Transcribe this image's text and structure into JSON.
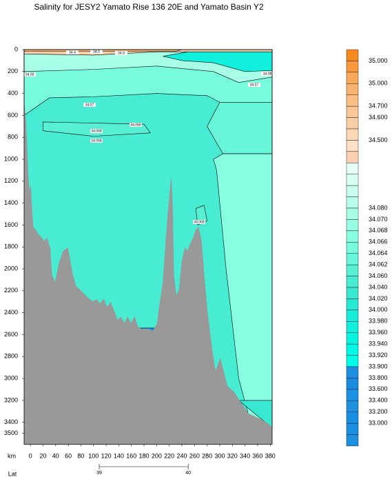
{
  "chart_data": {
    "type": "section",
    "title": "Salinity for JESY2 Yamato Rise 136 20E and Yamato Basin Y2",
    "x_label": "km",
    "x2_label": "Lat",
    "xlim": [
      -10,
      383
    ],
    "xticks": [
      0,
      20,
      40,
      60,
      80,
      100,
      120,
      140,
      160,
      180,
      200,
      220,
      240,
      260,
      280,
      300,
      320,
      340,
      360,
      380
    ],
    "x2ticks": [
      {
        "value": 109,
        "label": "39"
      },
      {
        "value": 250,
        "label": "40"
      }
    ],
    "ylim": [
      0,
      3600
    ],
    "yticks": [
      0,
      200,
      400,
      600,
      800,
      1000,
      1200,
      1400,
      1600,
      1800,
      2000,
      2200,
      2400,
      2600,
      2800,
      3000,
      3200,
      3400,
      3500
    ],
    "seafloor": {
      "color": "#999999",
      "x": [
        -10,
        -7,
        -4,
        -2,
        0,
        2,
        4,
        9,
        13,
        18,
        22,
        26,
        31,
        34,
        39,
        46,
        52,
        59,
        61,
        67,
        72,
        78,
        83,
        88,
        94,
        99,
        105,
        110,
        116,
        121,
        127,
        132,
        138,
        143,
        149,
        154,
        159,
        165,
        170,
        176,
        187,
        194,
        201,
        205,
        210,
        214,
        218,
        221,
        223,
        225,
        227,
        231,
        236,
        240,
        245,
        249,
        253,
        258,
        262,
        266,
        271,
        275,
        280,
        284,
        288,
        293,
        297,
        301,
        306,
        312,
        323,
        334,
        345,
        356,
        367,
        378,
        383
      ],
      "depth": [
        480,
        700,
        1120,
        1300,
        1245,
        1430,
        1620,
        1650,
        1690,
        1720,
        1750,
        1720,
        1810,
        2060,
        2130,
        1940,
        1840,
        1810,
        1870,
        2060,
        2160,
        2190,
        2220,
        2250,
        2280,
        2300,
        2280,
        2320,
        2280,
        2350,
        2310,
        2380,
        2470,
        2440,
        2500,
        2440,
        2500,
        2440,
        2530,
        2550,
        2550,
        2570,
        2500,
        2320,
        2130,
        1810,
        1500,
        1310,
        1180,
        1430,
        2060,
        2250,
        2190,
        1940,
        1810,
        1840,
        1780,
        1720,
        1650,
        1620,
        1750,
        2060,
        2380,
        2570,
        2750,
        2940,
        2880,
        2820,
        2940,
        3070,
        3130,
        3230,
        3320,
        3350,
        3380,
        3420,
        3450
      ]
    },
    "contour_labels": [
      "34.4",
      "34.5",
      "34.5",
      "34.08",
      "34.08",
      "34.07",
      "34.07",
      "34.068",
      "34.068",
      "34.068",
      "34.068"
    ],
    "colorbar": {
      "colors": [
        "#f78a1e",
        "#f89a3c",
        "#f9a95a",
        "#f9b370",
        "#fabd84",
        "#fbc796",
        "#fbcfa6",
        "#fcd8b6",
        "#fde0c6",
        "#fcd0b0",
        "#e8fff8",
        "#d8fff4",
        "#c8fff0",
        "#b8ffec",
        "#a8ffe8",
        "#98ffe4",
        "#88ffe0",
        "#78fadc",
        "#68f5d8",
        "#58f0d4",
        "#48ecd2",
        "#38e8d0",
        "#28e8d4",
        "#18ecd8",
        "#10f0dc",
        "#08f4e0",
        "#00f8e4",
        "#00ffe8",
        "#1e8fe0",
        "#1a8ce0",
        "#1c90e2",
        "#1e92e0",
        "#1a8ee0",
        "#1c8fe2",
        "#1e90e0"
      ],
      "labels": [
        null,
        "35.000",
        null,
        "35.000",
        null,
        "34.700",
        "34.600",
        null,
        "34.500",
        null,
        null,
        null,
        null,
        null,
        "34.080",
        "34.070",
        "34.068",
        "34.066",
        "34.064",
        "34.062",
        "34.060",
        "34.040",
        "34.020",
        "34.000",
        "33.980",
        "33.960",
        "33.940",
        "33.920",
        "33.900",
        "33.800",
        "33.600",
        "33.400",
        "33.200",
        "33.000",
        null,
        null
      ]
    }
  }
}
